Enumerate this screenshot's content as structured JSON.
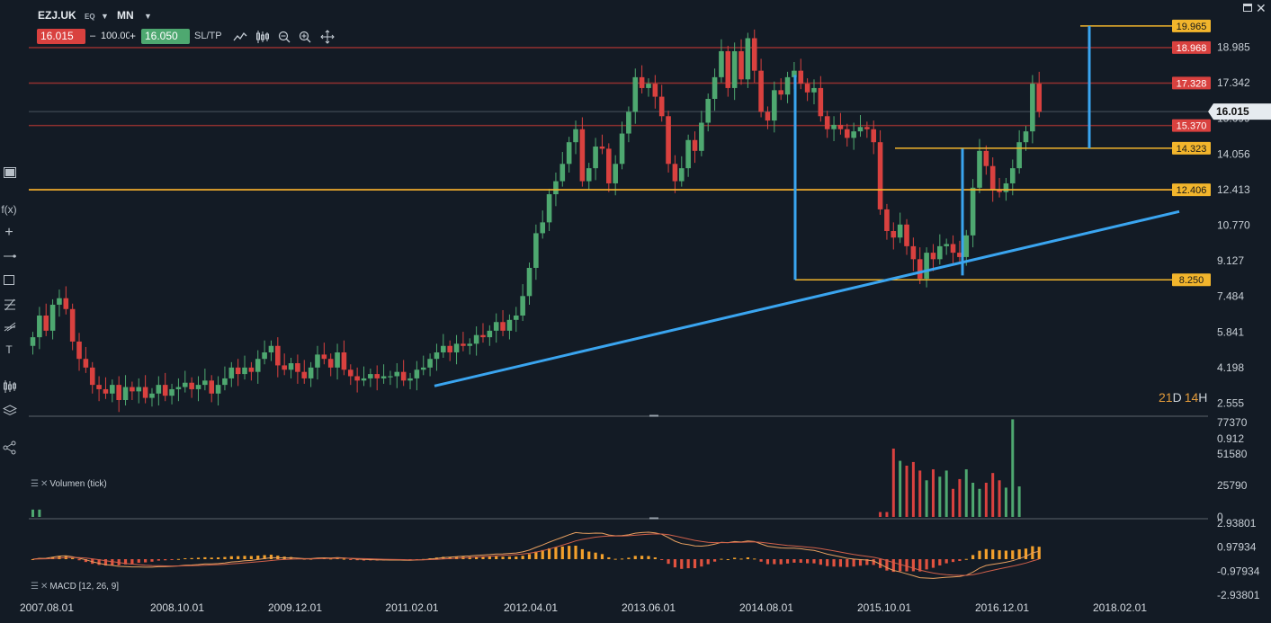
{
  "toolbar": {
    "symbol": "EZJ.UK",
    "symbol_type": "EQ",
    "timeframe": "MN",
    "sell_price": "16.015",
    "quantity": "100.00",
    "buy_price": "16.050",
    "sltp_label": "SL/TP",
    "minus": "–",
    "plus": "+"
  },
  "icons": [
    "line-chart-icon",
    "candles-icon",
    "zoom-out-icon",
    "zoom-in-icon",
    "move-icon",
    "fx-icon",
    "crosshair-icon",
    "line-tool-icon",
    "rectangle-icon",
    "fibonacci-icon",
    "pitchfork-icon",
    "text-icon",
    "indicators-icon",
    "layers-icon",
    "share-icon",
    "maximize-icon",
    "close-icon"
  ],
  "colors": {
    "background": "#131b25",
    "bull": "#4ea870",
    "bear": "#d9413f",
    "trendline": "#3aa5f0",
    "level_yellow": "#f2b52c",
    "level_red": "#d9413f",
    "resistance_line": "#8a2f2f",
    "countdown_days": "#e39b3a"
  },
  "countdown": {
    "days": "21",
    "days_unit": "D",
    "hours": "14",
    "hours_unit": "H"
  },
  "panels": {
    "volume_title": "Volumen (tick)",
    "macd_title": "MACD [12, 26, 9]"
  },
  "chart_data": [
    {
      "type": "candlestick",
      "symbol": "EZJ.UK",
      "timeframe": "MN",
      "y_ticks": [
        "18.985",
        "17.342",
        "15.699",
        "14.056",
        "12.413",
        "10.770",
        "9.127",
        "7.484",
        "5.841",
        "4.198",
        "2.555",
        "0.912"
      ],
      "ylim": [
        0.912,
        20.2
      ],
      "x_ticks": [
        "2007.08.01",
        "2008.10.01",
        "2009.12.01",
        "2011.02.01",
        "2012.04.01",
        "2013.06.01",
        "2014.08.01",
        "2015.10.01",
        "2016.12.01",
        "2018.02.01"
      ],
      "current_price": "16.015",
      "price_labels": [
        {
          "value": "19.965",
          "color": "yellow"
        },
        {
          "value": "18.968",
          "color": "red"
        },
        {
          "value": "17.328",
          "color": "red"
        },
        {
          "value": "15.370",
          "color": "red"
        },
        {
          "value": "14.323",
          "color": "yellow"
        },
        {
          "value": "12.406",
          "color": "yellow"
        },
        {
          "value": "8.250",
          "color": "yellow"
        }
      ],
      "closes": [
        5.6,
        6.6,
        5.9,
        7.1,
        7.4,
        6.9,
        5.4,
        4.6,
        4.2,
        3.4,
        3.2,
        3.0,
        3.4,
        2.7,
        3.3,
        3.1,
        3.3,
        2.8,
        3.0,
        3.4,
        2.9,
        3.2,
        3.3,
        3.5,
        3.2,
        3.4,
        3.6,
        3.0,
        3.4,
        3.7,
        4.2,
        3.9,
        4.2,
        4.0,
        4.6,
        4.9,
        5.2,
        4.3,
        4.1,
        4.4,
        4.0,
        3.7,
        4.2,
        4.8,
        4.6,
        4.2,
        4.9,
        4.1,
        3.8,
        3.6,
        3.7,
        3.9,
        3.7,
        3.8,
        3.8,
        4.0,
        3.6,
        3.7,
        4.1,
        4.2,
        4.6,
        4.9,
        5.2,
        4.9,
        5.3,
        5.2,
        5.3,
        5.7,
        5.6,
        5.9,
        6.3,
        5.9,
        6.4,
        6.6,
        7.5,
        8.8,
        10.4,
        10.9,
        12.2,
        12.8,
        13.6,
        14.6,
        15.2,
        12.8,
        13.4,
        14.4,
        14.3,
        12.7,
        13.6,
        15.0,
        16.0,
        17.6,
        17.1,
        17.3,
        16.7,
        15.8,
        13.6,
        12.8,
        13.4,
        14.7,
        14.2,
        15.5,
        16.6,
        17.6,
        18.8,
        17.1,
        18.8,
        17.5,
        19.4,
        17.9,
        16.0,
        15.6,
        17.0,
        16.8,
        17.6,
        17.9,
        17.3,
        16.9,
        17.1,
        15.8,
        15.2,
        15.4,
        15.2,
        14.8,
        15.1,
        15.3,
        15.2,
        14.6,
        11.5,
        10.5,
        10.2,
        10.8,
        9.8,
        9.2,
        8.3,
        9.5,
        9.2,
        9.8,
        9.9,
        9.5,
        9.3,
        10.3,
        12.5,
        14.2,
        13.5,
        12.4,
        12.3,
        12.7,
        13.4,
        14.6,
        15.1,
        17.3,
        16.0
      ],
      "macd_ticks": [
        "2.93801",
        "0.97934",
        "-0.97934",
        "-2.93801"
      ],
      "volume_ticks": [
        "77370",
        "51580",
        "25790",
        "0"
      ],
      "volume": [
        6000,
        6000,
        0,
        0,
        0,
        0,
        0,
        0,
        0,
        0,
        0,
        0,
        0,
        0,
        0,
        0,
        0,
        0,
        0,
        0,
        0,
        0,
        0,
        0,
        0,
        0,
        0,
        0,
        0,
        0,
        0,
        0,
        0,
        0,
        0,
        0,
        0,
        0,
        0,
        0,
        0,
        0,
        0,
        0,
        0,
        0,
        0,
        0,
        0,
        0,
        0,
        0,
        0,
        0,
        0,
        0,
        0,
        0,
        0,
        0,
        0,
        0,
        0,
        0,
        0,
        0,
        0,
        0,
        0,
        0,
        0,
        0,
        0,
        0,
        0,
        0,
        0,
        0,
        0,
        0,
        0,
        0,
        0,
        0,
        0,
        0,
        0,
        0,
        0,
        0,
        0,
        0,
        0,
        0,
        0,
        0,
        0,
        0,
        0,
        0,
        0,
        0,
        0,
        0,
        0,
        0,
        0,
        0,
        0,
        0,
        0,
        0,
        0,
        0,
        0,
        0,
        0,
        0,
        0,
        0,
        0,
        0,
        0,
        0,
        0,
        0,
        0,
        0,
        4000,
        4000,
        56000,
        46000,
        42000,
        45000,
        38000,
        30000,
        39000,
        33000,
        38000,
        23000,
        31000,
        39000,
        28000,
        23000,
        28000,
        36000,
        30000,
        24000,
        80000,
        25000
      ]
    }
  ]
}
